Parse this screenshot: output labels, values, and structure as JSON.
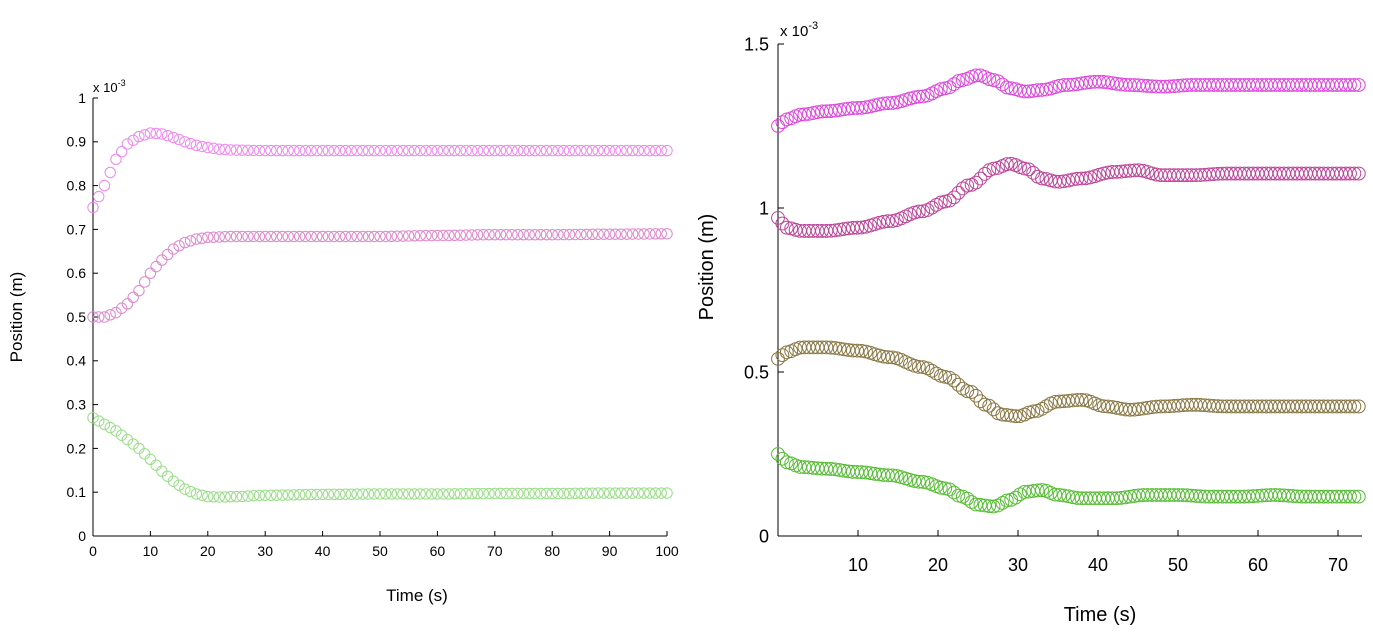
{
  "chart_data": [
    {
      "type": "scatter",
      "marker": "circle-open",
      "xlabel": "Time (s)",
      "ylabel": "Position (m)",
      "exponent_label": {
        "base": "x 10",
        "power": "-3"
      },
      "xlim": [
        0,
        100
      ],
      "ylim": [
        0,
        1.0
      ],
      "xticks": [
        "0",
        "10",
        "20",
        "30",
        "40",
        "50",
        "60",
        "70",
        "80",
        "90",
        "100"
      ],
      "yticks": [
        "0",
        "0.1",
        "0.2",
        "0.3",
        "0.4",
        "0.5",
        "0.6",
        "0.7",
        "0.8",
        "0.9",
        "1"
      ],
      "grid": false,
      "series": [
        {
          "color": "#ee88ee",
          "values": [
            [
              0,
              0.75
            ],
            [
              2,
              0.8
            ],
            [
              4,
              0.86
            ],
            [
              6,
              0.895
            ],
            [
              8,
              0.912
            ],
            [
              10,
              0.92
            ],
            [
              12,
              0.918
            ],
            [
              14,
              0.91
            ],
            [
              16,
              0.9
            ],
            [
              18,
              0.892
            ],
            [
              20,
              0.887
            ],
            [
              22,
              0.883
            ],
            [
              25,
              0.881
            ],
            [
              30,
              0.88
            ],
            [
              40,
              0.88
            ],
            [
              50,
              0.88
            ],
            [
              60,
              0.88
            ],
            [
              70,
              0.88
            ],
            [
              80,
              0.88
            ],
            [
              90,
              0.88
            ],
            [
              100,
              0.88
            ]
          ]
        },
        {
          "color": "#dd88cc",
          "values": [
            [
              0,
              0.5
            ],
            [
              2,
              0.5
            ],
            [
              4,
              0.51
            ],
            [
              6,
              0.53
            ],
            [
              8,
              0.56
            ],
            [
              10,
              0.6
            ],
            [
              12,
              0.63
            ],
            [
              14,
              0.655
            ],
            [
              16,
              0.67
            ],
            [
              18,
              0.678
            ],
            [
              20,
              0.682
            ],
            [
              25,
              0.684
            ],
            [
              30,
              0.684
            ],
            [
              40,
              0.684
            ],
            [
              50,
              0.684
            ],
            [
              60,
              0.686
            ],
            [
              70,
              0.688
            ],
            [
              80,
              0.688
            ],
            [
              90,
              0.689
            ],
            [
              100,
              0.69
            ]
          ]
        },
        {
          "color": "#99dd88",
          "values": [
            [
              0,
              0.27
            ],
            [
              2,
              0.255
            ],
            [
              4,
              0.24
            ],
            [
              6,
              0.22
            ],
            [
              8,
              0.2
            ],
            [
              10,
              0.175
            ],
            [
              12,
              0.148
            ],
            [
              14,
              0.125
            ],
            [
              16,
              0.107
            ],
            [
              18,
              0.096
            ],
            [
              20,
              0.09
            ],
            [
              22,
              0.089
            ],
            [
              25,
              0.09
            ],
            [
              30,
              0.093
            ],
            [
              40,
              0.095
            ],
            [
              50,
              0.096
            ],
            [
              60,
              0.096
            ],
            [
              70,
              0.097
            ],
            [
              80,
              0.097
            ],
            [
              90,
              0.098
            ],
            [
              100,
              0.098
            ]
          ]
        }
      ]
    },
    {
      "type": "scatter",
      "marker": "circle-open",
      "xlabel": "Time (s)",
      "ylabel": "Position (m)",
      "exponent_label": {
        "base": "x 10",
        "power": "-3"
      },
      "xlim": [
        0,
        73
      ],
      "ylim": [
        0,
        1.5
      ],
      "xticks": [
        "10",
        "20",
        "30",
        "40",
        "50",
        "60",
        "70"
      ],
      "yticks": [
        "0",
        "0.5",
        "1",
        "1.5"
      ],
      "grid": false,
      "series": [
        {
          "color": "#dd44dd",
          "values": [
            [
              0,
              1.25
            ],
            [
              1,
              1.27
            ],
            [
              3,
              1.285
            ],
            [
              6,
              1.295
            ],
            [
              10,
              1.305
            ],
            [
              14,
              1.32
            ],
            [
              18,
              1.34
            ],
            [
              21,
              1.365
            ],
            [
              23,
              1.39
            ],
            [
              25,
              1.405
            ],
            [
              27,
              1.39
            ],
            [
              29,
              1.365
            ],
            [
              31,
              1.355
            ],
            [
              33,
              1.36
            ],
            [
              36,
              1.375
            ],
            [
              40,
              1.385
            ],
            [
              44,
              1.375
            ],
            [
              48,
              1.37
            ],
            [
              52,
              1.375
            ],
            [
              56,
              1.375
            ],
            [
              60,
              1.375
            ],
            [
              65,
              1.375
            ],
            [
              70,
              1.375
            ],
            [
              73,
              1.375
            ]
          ]
        },
        {
          "color": "#bb4499",
          "values": [
            [
              0,
              0.97
            ],
            [
              1,
              0.94
            ],
            [
              3,
              0.93
            ],
            [
              6,
              0.93
            ],
            [
              10,
              0.94
            ],
            [
              14,
              0.96
            ],
            [
              18,
              0.99
            ],
            [
              21,
              1.02
            ],
            [
              24,
              1.07
            ],
            [
              27,
              1.12
            ],
            [
              29,
              1.135
            ],
            [
              31,
              1.12
            ],
            [
              33,
              1.09
            ],
            [
              35,
              1.08
            ],
            [
              38,
              1.09
            ],
            [
              42,
              1.11
            ],
            [
              45,
              1.115
            ],
            [
              48,
              1.1
            ],
            [
              52,
              1.1
            ],
            [
              56,
              1.105
            ],
            [
              60,
              1.105
            ],
            [
              65,
              1.105
            ],
            [
              70,
              1.105
            ],
            [
              73,
              1.105
            ]
          ]
        },
        {
          "color": "#887744",
          "values": [
            [
              0,
              0.54
            ],
            [
              1,
              0.56
            ],
            [
              3,
              0.575
            ],
            [
              6,
              0.575
            ],
            [
              10,
              0.565
            ],
            [
              14,
              0.545
            ],
            [
              18,
              0.515
            ],
            [
              21,
              0.485
            ],
            [
              24,
              0.44
            ],
            [
              26,
              0.4
            ],
            [
              28,
              0.37
            ],
            [
              30,
              0.365
            ],
            [
              32,
              0.38
            ],
            [
              35,
              0.41
            ],
            [
              38,
              0.415
            ],
            [
              41,
              0.395
            ],
            [
              44,
              0.385
            ],
            [
              48,
              0.395
            ],
            [
              52,
              0.4
            ],
            [
              56,
              0.395
            ],
            [
              60,
              0.395
            ],
            [
              65,
              0.395
            ],
            [
              70,
              0.395
            ],
            [
              73,
              0.395
            ]
          ]
        },
        {
          "color": "#55bb33",
          "values": [
            [
              0,
              0.25
            ],
            [
              1,
              0.225
            ],
            [
              3,
              0.21
            ],
            [
              6,
              0.205
            ],
            [
              10,
              0.195
            ],
            [
              14,
              0.185
            ],
            [
              18,
              0.165
            ],
            [
              21,
              0.145
            ],
            [
              23,
              0.12
            ],
            [
              25,
              0.095
            ],
            [
              27,
              0.09
            ],
            [
              29,
              0.11
            ],
            [
              31,
              0.135
            ],
            [
              33,
              0.14
            ],
            [
              35,
              0.125
            ],
            [
              38,
              0.115
            ],
            [
              42,
              0.115
            ],
            [
              46,
              0.125
            ],
            [
              50,
              0.125
            ],
            [
              54,
              0.12
            ],
            [
              58,
              0.12
            ],
            [
              62,
              0.125
            ],
            [
              66,
              0.12
            ],
            [
              70,
              0.12
            ],
            [
              73,
              0.12
            ]
          ]
        }
      ]
    }
  ]
}
